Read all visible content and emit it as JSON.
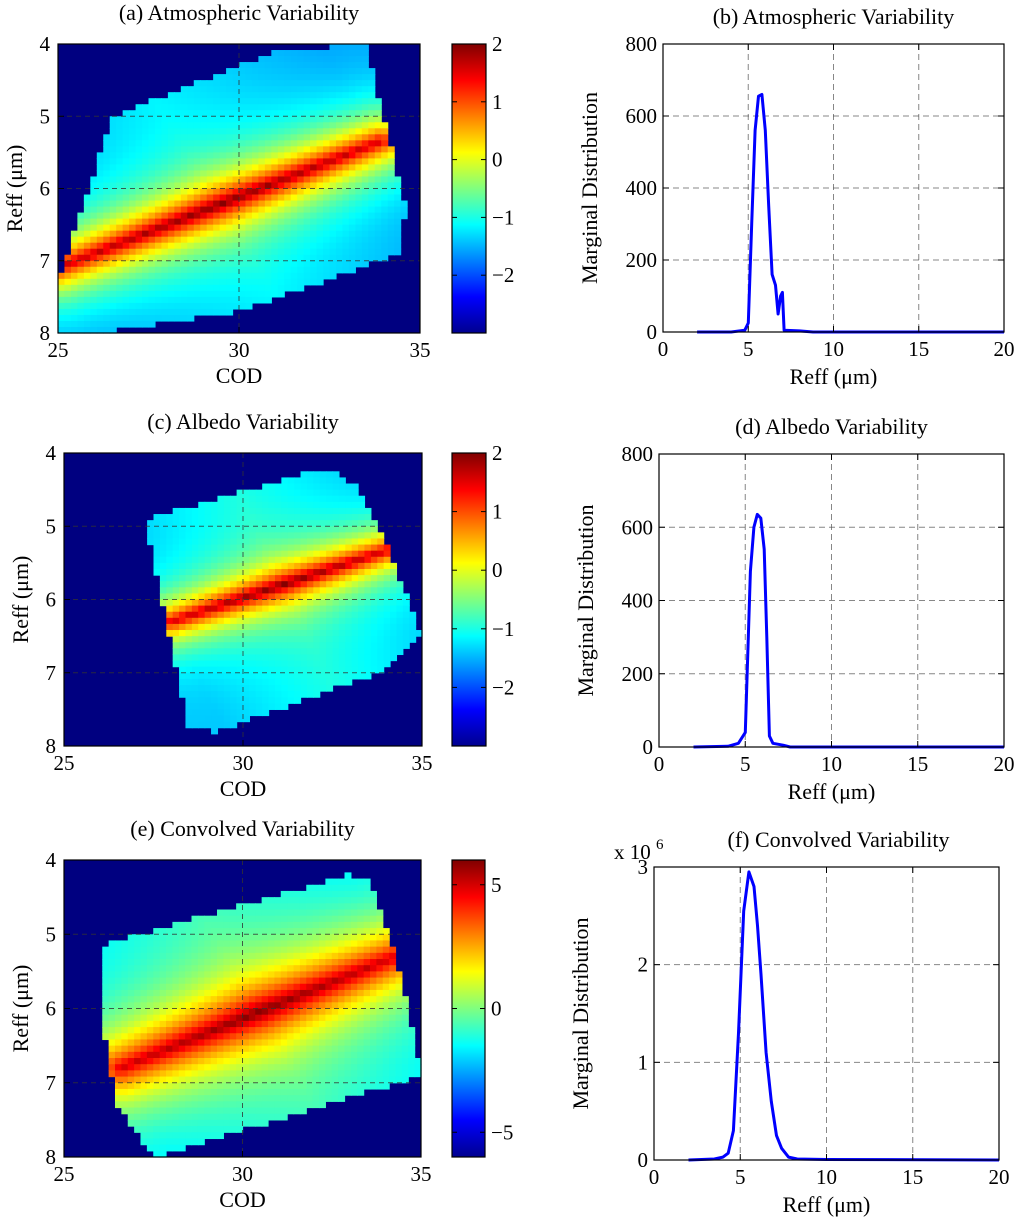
{
  "colors": {
    "line": "#0000ff",
    "grid": "#555555",
    "axis": "#000000",
    "heatmap_low": "#00008f",
    "heatmap_high": "#800000"
  },
  "chart_data": [
    {
      "id": "a",
      "type": "heatmap",
      "title": "(a) Atmospheric Variability",
      "xlabel": "COD",
      "ylabel": "Reff (μm)",
      "xlim": [
        25,
        35
      ],
      "ylim": [
        4,
        8
      ],
      "y_reversed": true,
      "xticks": [
        25,
        30,
        35
      ],
      "yticks": [
        4,
        5,
        6,
        7,
        8
      ],
      "grid": true,
      "colorbar": {
        "range": [
          -3,
          2
        ],
        "ticks": [
          2,
          1,
          0,
          -1,
          -2
        ],
        "tick_labels": [
          "2",
          "1",
          "0",
          "−1",
          "−2"
        ]
      },
      "field": {
        "corners": [
          [
            25.0,
            7.05
          ],
          [
            25.0,
            8.0
          ],
          [
            35.0,
            8.0
          ],
          [
            35.0,
            6.9
          ],
          [
            33.6,
            4.0
          ],
          [
            26.3,
            4.65
          ],
          [
            28.5,
            4.0
          ]
        ],
        "region": [
          [
            25.0,
            7.3
          ],
          [
            26.5,
            5.0
          ],
          [
            31.0,
            4.1
          ],
          [
            33.5,
            4.0
          ],
          [
            34.6,
            6.3
          ],
          [
            34.4,
            6.9
          ],
          [
            30.0,
            7.7
          ],
          [
            26.0,
            8.0
          ],
          [
            25.0,
            8.0
          ]
        ],
        "ridge": [
          [
            25.0,
            7.1
          ],
          [
            33.9,
            5.35
          ]
        ],
        "peak": 2.0,
        "decay": 0.9,
        "edge_value": -1.2,
        "background": -3
      }
    },
    {
      "id": "b",
      "type": "line",
      "title": "(b) Atmospheric Variability",
      "xlabel": "Reff (μm)",
      "ylabel": "Marginal Distribution",
      "xlim": [
        0,
        20
      ],
      "ylim": [
        0,
        800
      ],
      "xticks": [
        0,
        5,
        10,
        15,
        20
      ],
      "yticks": [
        0,
        200,
        400,
        600,
        800
      ],
      "ytick_labels": [
        "0",
        "200",
        "400",
        "600",
        "800"
      ],
      "multiplier": "",
      "grid": true,
      "series": [
        {
          "name": "Marginal Distribution",
          "x": [
            2.0,
            4.0,
            4.8,
            5.0,
            5.2,
            5.4,
            5.6,
            5.8,
            6.0,
            6.2,
            6.4,
            6.6,
            6.75,
            6.9,
            7.0,
            7.1,
            8.0,
            8.8,
            20.0
          ],
          "y": [
            0,
            0,
            5,
            25,
            300,
            560,
            655,
            660,
            560,
            350,
            160,
            130,
            50,
            100,
            110,
            5,
            3,
            0,
            0
          ]
        }
      ]
    },
    {
      "id": "c",
      "type": "heatmap",
      "title": "(c) Albedo Variability",
      "xlabel": "COD",
      "ylabel": "Reff (μm)",
      "xlim": [
        25,
        35
      ],
      "ylim": [
        4,
        8
      ],
      "y_reversed": true,
      "xticks": [
        25,
        30,
        35
      ],
      "yticks": [
        4,
        5,
        6,
        7,
        8
      ],
      "grid": true,
      "colorbar": {
        "range": [
          -3,
          2
        ],
        "ticks": [
          2,
          1,
          0,
          -1,
          -2
        ],
        "tick_labels": [
          "2",
          "1",
          "0",
          "−1",
          "−2"
        ]
      },
      "field": {
        "region": [
          [
            27.3,
            4.9
          ],
          [
            32.3,
            4.2
          ],
          [
            33.2,
            4.45
          ],
          [
            34.0,
            5.25
          ],
          [
            35.0,
            6.5
          ],
          [
            34.0,
            6.95
          ],
          [
            29.3,
            7.8
          ],
          [
            28.5,
            7.75
          ],
          [
            27.5,
            5.5
          ]
        ],
        "ridge": [
          [
            28.0,
            6.3
          ],
          [
            34.2,
            5.3
          ]
        ],
        "peak": 2.0,
        "decay": 0.7,
        "edge_value": -1.0,
        "background": -3
      }
    },
    {
      "id": "d",
      "type": "line",
      "title": "(d) Albedo Variability",
      "xlabel": "Reff (μm)",
      "ylabel": "Marginal Distribution",
      "xlim": [
        0,
        20
      ],
      "ylim": [
        0,
        800
      ],
      "xticks": [
        0,
        5,
        10,
        15,
        20
      ],
      "yticks": [
        0,
        200,
        400,
        600,
        800
      ],
      "ytick_labels": [
        "0",
        "200",
        "400",
        "600",
        "800"
      ],
      "multiplier": "",
      "grid": true,
      "series": [
        {
          "name": "Marginal Distribution",
          "x": [
            2.0,
            4.0,
            4.6,
            5.0,
            5.3,
            5.5,
            5.7,
            5.9,
            6.1,
            6.25,
            6.4,
            6.6,
            7.2,
            7.6,
            20.0
          ],
          "y": [
            0,
            2,
            10,
            40,
            480,
            600,
            635,
            625,
            540,
            300,
            30,
            10,
            5,
            0,
            0
          ]
        }
      ]
    },
    {
      "id": "e",
      "type": "heatmap",
      "title": "(e) Convolved  Variability",
      "xlabel": "COD",
      "ylabel": "Reff (μm)",
      "xlim": [
        25,
        35
      ],
      "ylim": [
        4,
        8
      ],
      "y_reversed": true,
      "xticks": [
        25,
        30,
        35
      ],
      "yticks": [
        4,
        5,
        6,
        7,
        8
      ],
      "grid": true,
      "colorbar": {
        "range": [
          -6,
          6
        ],
        "ticks": [
          5,
          0,
          -5
        ],
        "tick_labels": [
          "5",
          "0",
          "−5"
        ]
      },
      "field": {
        "region": [
          [
            26.0,
            5.15
          ],
          [
            33.0,
            4.2
          ],
          [
            33.6,
            4.3
          ],
          [
            34.4,
            5.5
          ],
          [
            35.0,
            6.9
          ],
          [
            27.5,
            8.0
          ],
          [
            26.5,
            7.3
          ],
          [
            26.0,
            6.0
          ]
        ],
        "ridge": [
          [
            26.6,
            6.8
          ],
          [
            34.3,
            5.3
          ]
        ],
        "peak": 6.0,
        "decay": 1.2,
        "edge_value": -1.0,
        "background": -6
      }
    },
    {
      "id": "f",
      "type": "line",
      "title": "(f) Convolved  Variability",
      "xlabel": "Reff (μm)",
      "ylabel": "Marginal Distribution",
      "xlim": [
        0,
        20
      ],
      "ylim": [
        0,
        3
      ],
      "xticks": [
        0,
        5,
        10,
        15,
        20
      ],
      "yticks": [
        0,
        1,
        2,
        3
      ],
      "ytick_labels": [
        "0",
        "1",
        "2",
        "3"
      ],
      "multiplier": "x 10",
      "multiplier_exponent": "6",
      "grid": true,
      "series": [
        {
          "name": "Marginal Distribution",
          "x": [
            2.0,
            3.5,
            4.0,
            4.3,
            4.6,
            4.9,
            5.2,
            5.5,
            5.8,
            6.0,
            6.2,
            6.5,
            6.8,
            7.1,
            7.4,
            7.8,
            8.3,
            10.0,
            20.0
          ],
          "y": [
            0,
            0.01,
            0.03,
            0.07,
            0.3,
            1.3,
            2.55,
            2.95,
            2.8,
            2.4,
            1.9,
            1.1,
            0.6,
            0.25,
            0.12,
            0.03,
            0.01,
            0.005,
            0
          ]
        }
      ]
    }
  ]
}
